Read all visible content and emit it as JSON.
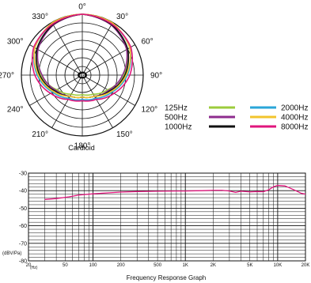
{
  "chart_data": [
    {
      "type": "polar",
      "caption": "Cardioid",
      "angle_labels": [
        "0°",
        "30°",
        "60°",
        "90°",
        "120°",
        "150°",
        "180°",
        "210°",
        "240°",
        "270°",
        "300°",
        "330°"
      ],
      "center_label": "dB",
      "legend": [
        {
          "name": "125Hz",
          "color": "#9ccc3c"
        },
        {
          "name": "500Hz",
          "color": "#8e2c8e"
        },
        {
          "name": "1000Hz",
          "color": "#111111"
        },
        {
          "name": "2000Hz",
          "color": "#2aa6d8"
        },
        {
          "name": "4000Hz",
          "color": "#f2c42c"
        },
        {
          "name": "8000Hz",
          "color": "#e0157c"
        }
      ],
      "radius_scale": [
        0,
        1
      ],
      "angles_deg": [
        0,
        30,
        60,
        90,
        120,
        150,
        180,
        210,
        240,
        270,
        300,
        330,
        360
      ],
      "series": [
        {
          "name": "125Hz",
          "values": [
            1.0,
            0.96,
            0.86,
            0.68,
            0.48,
            0.36,
            0.32,
            0.36,
            0.48,
            0.68,
            0.86,
            0.96,
            1.0
          ]
        },
        {
          "name": "500Hz",
          "values": [
            1.0,
            0.95,
            0.84,
            0.66,
            0.5,
            0.4,
            0.36,
            0.4,
            0.5,
            0.66,
            0.84,
            0.95,
            1.0
          ]
        },
        {
          "name": "1000Hz",
          "values": [
            1.0,
            0.96,
            0.86,
            0.7,
            0.52,
            0.4,
            0.36,
            0.4,
            0.52,
            0.7,
            0.86,
            0.96,
            1.0
          ]
        },
        {
          "name": "2000Hz",
          "values": [
            1.0,
            0.98,
            0.9,
            0.74,
            0.56,
            0.44,
            0.4,
            0.44,
            0.56,
            0.74,
            0.9,
            0.98,
            1.0
          ]
        },
        {
          "name": "4000Hz",
          "values": [
            1.0,
            0.99,
            0.9,
            0.72,
            0.54,
            0.4,
            0.36,
            0.4,
            0.54,
            0.72,
            0.9,
            0.99,
            1.0
          ]
        },
        {
          "name": "8000Hz",
          "values": [
            1.0,
            0.97,
            0.92,
            0.78,
            0.6,
            0.46,
            0.42,
            0.46,
            0.6,
            0.78,
            0.92,
            0.97,
            1.0
          ]
        }
      ]
    },
    {
      "type": "line",
      "caption": "Frequency Response Graph",
      "ylabel": "(dBV/Pa)",
      "x_unit_label": "(Hz)",
      "x_scale": "log",
      "xlim": [
        20,
        20000
      ],
      "ylim": [
        -80,
        -30
      ],
      "x_tick_labels": [
        {
          "value": 20,
          "label": "20"
        },
        {
          "value": 50,
          "label": "50"
        },
        {
          "value": 100,
          "label": "100"
        },
        {
          "value": 200,
          "label": "200"
        },
        {
          "value": 500,
          "label": "500"
        },
        {
          "value": 1000,
          "label": "1K"
        },
        {
          "value": 2000,
          "label": "2K"
        },
        {
          "value": 5000,
          "label": "5K"
        },
        {
          "value": 10000,
          "label": "10K"
        },
        {
          "value": 20000,
          "label": "20K"
        }
      ],
      "y_tick_labels": [
        "-30",
        "-40",
        "-50",
        "-60",
        "-70",
        "-80"
      ],
      "grid": true,
      "color": "#e0157c",
      "x": [
        30,
        40,
        55,
        70,
        100,
        150,
        200,
        300,
        500,
        800,
        1000,
        1500,
        2000,
        2500,
        3000,
        3500,
        4000,
        5000,
        6000,
        7000,
        8000,
        9000,
        10000,
        12000,
        15000,
        18000,
        20000
      ],
      "y": [
        -45,
        -44.5,
        -43.5,
        -42.5,
        -41.8,
        -41.2,
        -40.8,
        -40.5,
        -40.3,
        -40.2,
        -40.2,
        -40,
        -39.8,
        -39.8,
        -40.2,
        -41,
        -40.3,
        -40.7,
        -40.5,
        -40.6,
        -39.5,
        -37.8,
        -37,
        -37.3,
        -39.5,
        -41.5,
        -42
      ]
    }
  ]
}
